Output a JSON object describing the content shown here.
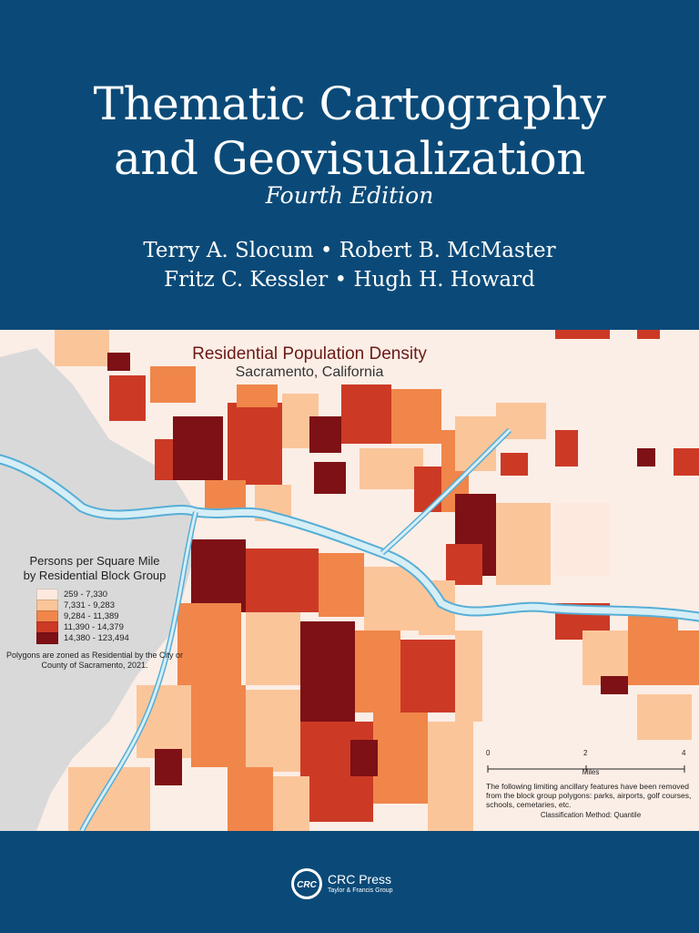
{
  "book": {
    "title_line1": "Thematic Cartography",
    "title_line2": "and Geovisualization",
    "edition": "Fourth Edition",
    "authors_line1": "Terry A. Slocum • Robert B. McMaster",
    "authors_line2": "Fritz C. Kessler • Hugh H. Howard"
  },
  "map": {
    "title": "Residential Population Density",
    "subtitle": "Sacramento, California",
    "legend_title_line1": "Persons per Square Mile",
    "legend_title_line2": "by Residential Block Group",
    "classes": [
      {
        "label": "259 - 7,330",
        "color": "#fde9dd"
      },
      {
        "label": "7,331 - 9,283",
        "color": "#fbc59a"
      },
      {
        "label": "9,284 - 11,389",
        "color": "#f0864a"
      },
      {
        "label": "11,390 - 14,379",
        "color": "#cc3a25"
      },
      {
        "label": "14,380 - 123,494",
        "color": "#7d1116"
      }
    ],
    "legend_note": "Polygons are zoned as Residential by the City or County of Sacramento, 2021.",
    "scale": {
      "ticks": [
        "0",
        "2",
        "4"
      ],
      "unit": "Miles"
    },
    "ancillary_note": "The following limiting ancillary features have been removed from the block group polygons: parks, airports, golf courses, schools, cemetaries, etc.",
    "classification": "Classification Method: Quantile",
    "colors": {
      "water": "#d6eef6",
      "river_edge": "#56aed6",
      "land_gray": "#d9d9d9",
      "background": "#fbeee6"
    }
  },
  "publisher": {
    "logo_text": "CRC",
    "name": "CRC Press",
    "group": "Taylor & Francis Group"
  },
  "colors": {
    "cover_blue": "#0b4a78"
  }
}
